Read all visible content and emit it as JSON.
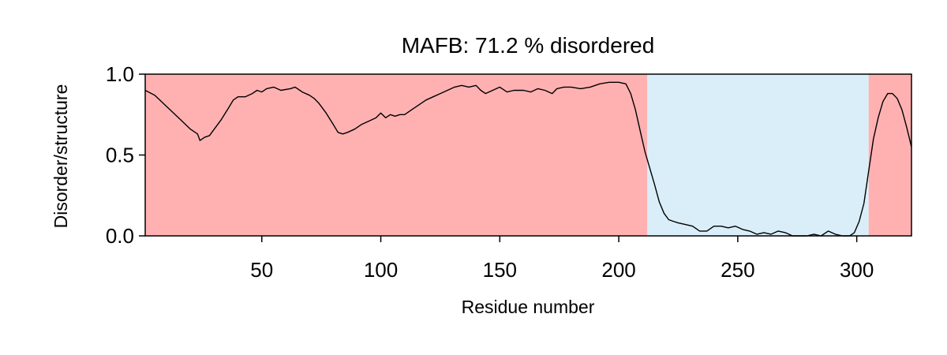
{
  "chart_data": {
    "type": "line",
    "title": "MAFB: 71.2 % disordered",
    "xlabel": "Residue number",
    "ylabel": "Disorder/structure",
    "xlim": [
      1,
      323
    ],
    "ylim": [
      0.0,
      1.0
    ],
    "xticks": [
      50,
      100,
      150,
      200,
      250,
      300
    ],
    "yticks": [
      0.0,
      0.5,
      1.0
    ],
    "xtick_labels": [
      "50",
      "100",
      "150",
      "200",
      "250",
      "300"
    ],
    "ytick_labels": [
      "0.0",
      "0.5",
      "1.0"
    ],
    "grid": false,
    "regions": [
      {
        "start": 1,
        "end": 212,
        "kind": "disordered",
        "color": "#ffb1b2"
      },
      {
        "start": 212,
        "end": 305,
        "kind": "structured",
        "color": "#d9eef8"
      },
      {
        "start": 305,
        "end": 323,
        "kind": "disordered",
        "color": "#ffb1b2"
      }
    ],
    "series": [
      {
        "color": "#000000",
        "points": [
          [
            1,
            0.9
          ],
          [
            5,
            0.87
          ],
          [
            10,
            0.8
          ],
          [
            15,
            0.73
          ],
          [
            20,
            0.66
          ],
          [
            23,
            0.63
          ],
          [
            24,
            0.59
          ],
          [
            26,
            0.61
          ],
          [
            28,
            0.62
          ],
          [
            30,
            0.66
          ],
          [
            33,
            0.72
          ],
          [
            36,
            0.79
          ],
          [
            38,
            0.84
          ],
          [
            40,
            0.86
          ],
          [
            43,
            0.86
          ],
          [
            46,
            0.88
          ],
          [
            48,
            0.9
          ],
          [
            50,
            0.89
          ],
          [
            52,
            0.91
          ],
          [
            55,
            0.92
          ],
          [
            58,
            0.9
          ],
          [
            62,
            0.91
          ],
          [
            64,
            0.92
          ],
          [
            67,
            0.89
          ],
          [
            70,
            0.87
          ],
          [
            72,
            0.85
          ],
          [
            74,
            0.82
          ],
          [
            77,
            0.76
          ],
          [
            80,
            0.69
          ],
          [
            82,
            0.64
          ],
          [
            84,
            0.63
          ],
          [
            86,
            0.64
          ],
          [
            89,
            0.66
          ],
          [
            92,
            0.69
          ],
          [
            95,
            0.71
          ],
          [
            98,
            0.73
          ],
          [
            100,
            0.76
          ],
          [
            102,
            0.73
          ],
          [
            104,
            0.75
          ],
          [
            106,
            0.74
          ],
          [
            108,
            0.75
          ],
          [
            110,
            0.75
          ],
          [
            113,
            0.78
          ],
          [
            116,
            0.81
          ],
          [
            119,
            0.84
          ],
          [
            122,
            0.86
          ],
          [
            125,
            0.88
          ],
          [
            128,
            0.9
          ],
          [
            131,
            0.92
          ],
          [
            134,
            0.93
          ],
          [
            137,
            0.92
          ],
          [
            140,
            0.93
          ],
          [
            142,
            0.9
          ],
          [
            144,
            0.88
          ],
          [
            147,
            0.9
          ],
          [
            150,
            0.92
          ],
          [
            153,
            0.89
          ],
          [
            156,
            0.9
          ],
          [
            160,
            0.9
          ],
          [
            163,
            0.89
          ],
          [
            166,
            0.91
          ],
          [
            169,
            0.9
          ],
          [
            172,
            0.88
          ],
          [
            174,
            0.91
          ],
          [
            177,
            0.92
          ],
          [
            180,
            0.92
          ],
          [
            184,
            0.91
          ],
          [
            188,
            0.92
          ],
          [
            192,
            0.94
          ],
          [
            196,
            0.95
          ],
          [
            200,
            0.95
          ],
          [
            203,
            0.94
          ],
          [
            205,
            0.88
          ],
          [
            207,
            0.78
          ],
          [
            209,
            0.65
          ],
          [
            211,
            0.52
          ],
          [
            213,
            0.42
          ],
          [
            215,
            0.32
          ],
          [
            217,
            0.21
          ],
          [
            219,
            0.14
          ],
          [
            221,
            0.1
          ],
          [
            223,
            0.09
          ],
          [
            225,
            0.08
          ],
          [
            228,
            0.07
          ],
          [
            231,
            0.06
          ],
          [
            234,
            0.03
          ],
          [
            237,
            0.03
          ],
          [
            240,
            0.06
          ],
          [
            243,
            0.06
          ],
          [
            246,
            0.05
          ],
          [
            249,
            0.06
          ],
          [
            252,
            0.04
          ],
          [
            255,
            0.03
          ],
          [
            258,
            0.01
          ],
          [
            261,
            0.02
          ],
          [
            264,
            0.01
          ],
          [
            267,
            0.03
          ],
          [
            270,
            0.02
          ],
          [
            273,
            0.0
          ],
          [
            276,
            0.0
          ],
          [
            279,
            0.0
          ],
          [
            282,
            0.01
          ],
          [
            285,
            0.0
          ],
          [
            288,
            0.03
          ],
          [
            291,
            0.01
          ],
          [
            294,
            0.0
          ],
          [
            297,
            0.0
          ],
          [
            299,
            0.02
          ],
          [
            301,
            0.09
          ],
          [
            303,
            0.2
          ],
          [
            305,
            0.4
          ],
          [
            307,
            0.6
          ],
          [
            309,
            0.73
          ],
          [
            311,
            0.83
          ],
          [
            313,
            0.88
          ],
          [
            315,
            0.88
          ],
          [
            317,
            0.85
          ],
          [
            319,
            0.78
          ],
          [
            321,
            0.67
          ],
          [
            323,
            0.55
          ]
        ]
      }
    ]
  }
}
